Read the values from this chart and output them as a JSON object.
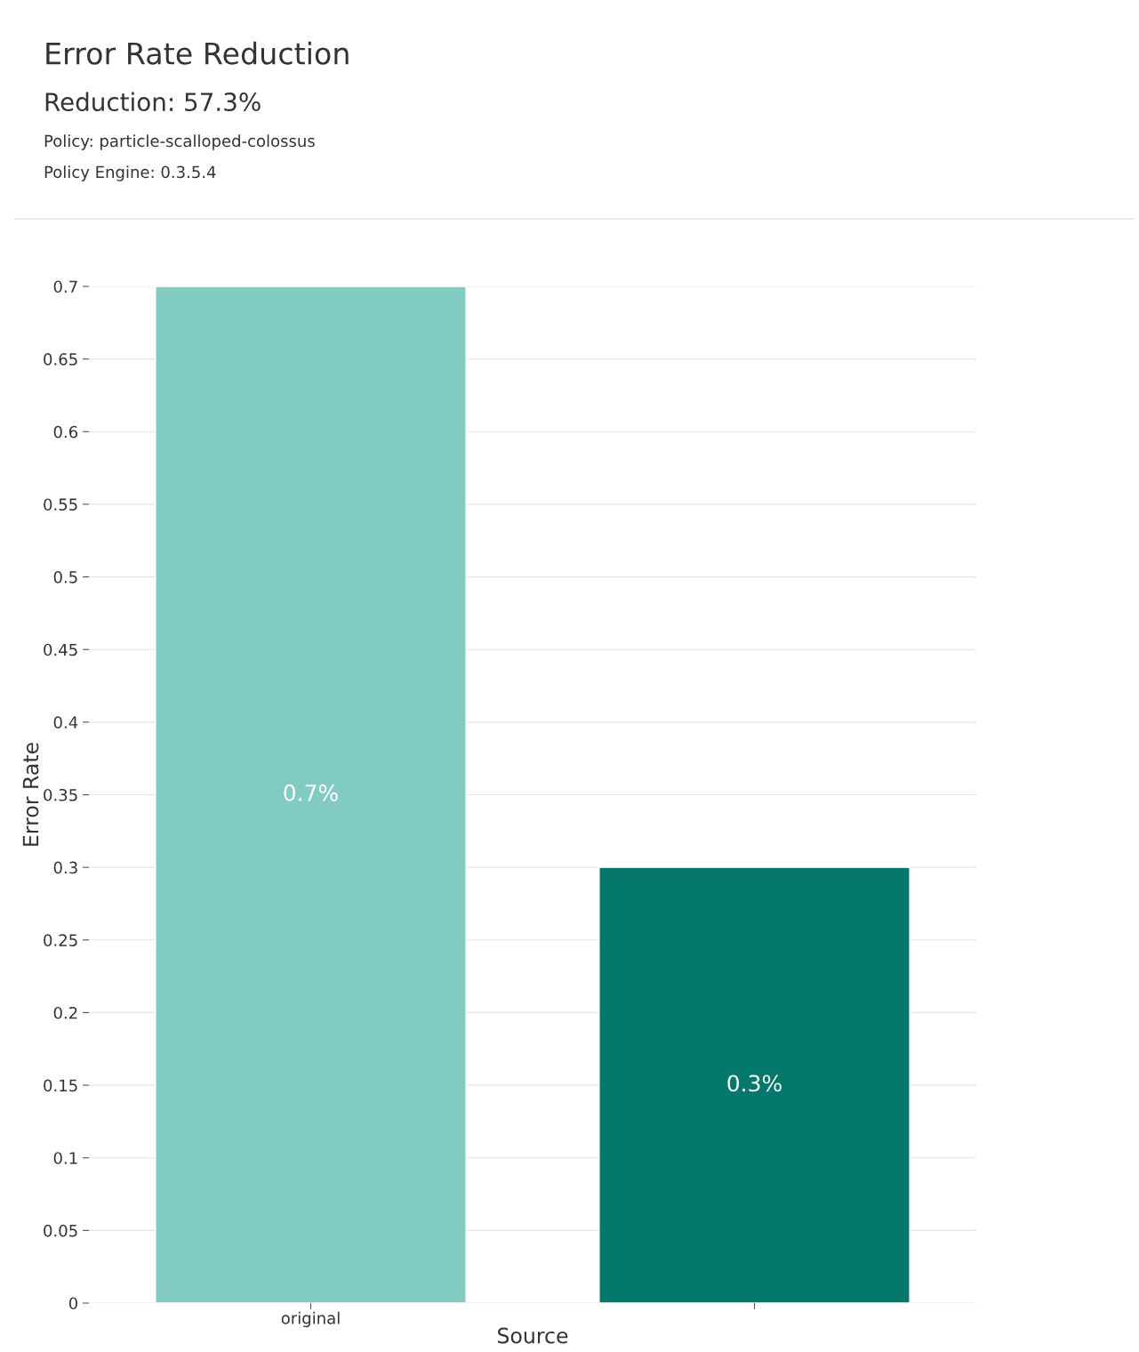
{
  "chart_data": {
    "type": "bar",
    "title": "Error Rate Reduction",
    "subtitle": "Reduction: 57.3%",
    "annotations": [
      "Policy: particle-scalloped-colossus",
      "Policy Engine: 0.3.5.4"
    ],
    "xlabel": "Source",
    "ylabel": "Error Rate",
    "categories": [
      "original",
      null
    ],
    "values": [
      0.7,
      0.3
    ],
    "colors": [
      "#82cbc2",
      "#04796b"
    ],
    "value_labels": [
      "0.7%",
      "0.3%"
    ],
    "ylim": [
      0,
      0.7
    ],
    "yticks": [
      0,
      0.05,
      0.1,
      0.15,
      0.2,
      0.25,
      0.3,
      0.35,
      0.4,
      0.45,
      0.5,
      0.55,
      0.6,
      0.65,
      0.7
    ],
    "grid": "y"
  }
}
